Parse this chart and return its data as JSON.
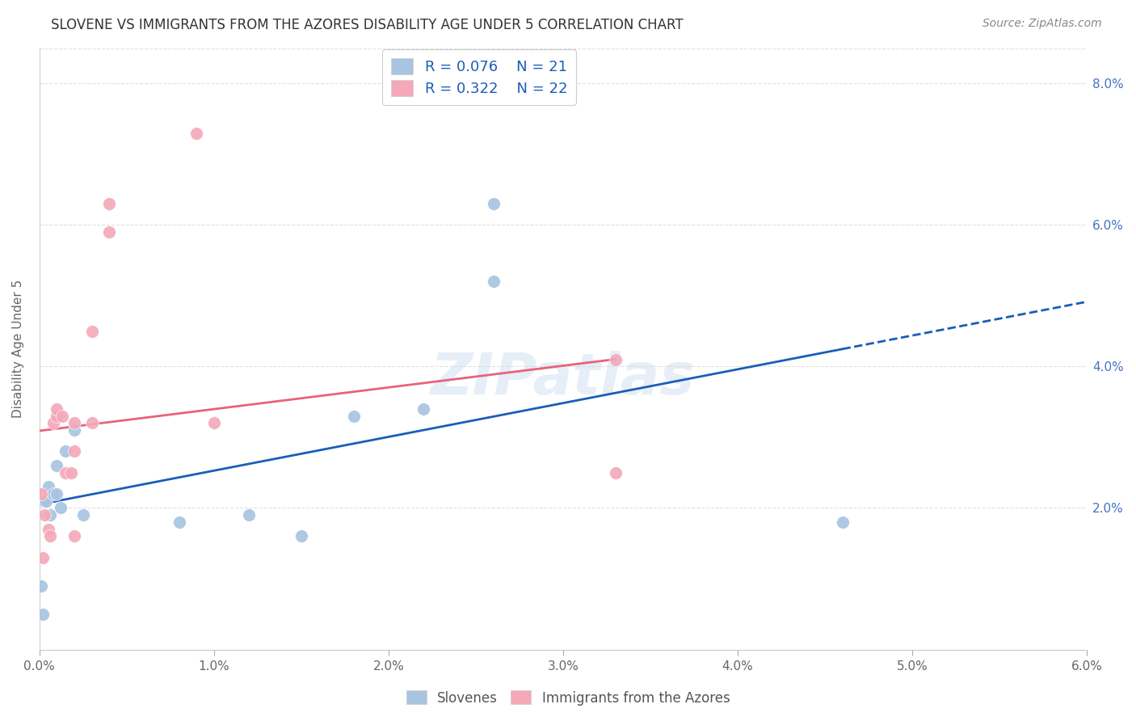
{
  "title": "SLOVENE VS IMMIGRANTS FROM THE AZORES DISABILITY AGE UNDER 5 CORRELATION CHART",
  "source": "Source: ZipAtlas.com",
  "ylabel": "Disability Age Under 5",
  "legend_label_1": "Slovenes",
  "legend_label_2": "Immigrants from the Azores",
  "r1": 0.076,
  "n1": 21,
  "r2": 0.322,
  "n2": 22,
  "color1": "#a8c4e0",
  "color2": "#f4a8b8",
  "line1_color": "#1a5eb8",
  "line2_color": "#e8637a",
  "xlim": [
    0.0,
    0.06
  ],
  "ylim": [
    0.0,
    0.085
  ],
  "xticks": [
    0.0,
    0.01,
    0.02,
    0.03,
    0.04,
    0.05,
    0.06
  ],
  "xticklabels": [
    "0.0%",
    "1.0%",
    "2.0%",
    "3.0%",
    "4.0%",
    "5.0%",
    "6.0%"
  ],
  "yticks": [
    0.0,
    0.02,
    0.04,
    0.06,
    0.08
  ],
  "yticklabels_right": [
    "",
    "2.0%",
    "4.0%",
    "6.0%",
    "8.0%"
  ],
  "slovenes_x": [
    0.0001,
    0.0002,
    0.0003,
    0.0004,
    0.0005,
    0.0006,
    0.0008,
    0.001,
    0.001,
    0.0012,
    0.0015,
    0.002,
    0.0025,
    0.008,
    0.012,
    0.015,
    0.018,
    0.022,
    0.026,
    0.026,
    0.046
  ],
  "slovenes_y": [
    0.009,
    0.005,
    0.021,
    0.021,
    0.023,
    0.019,
    0.022,
    0.022,
    0.026,
    0.02,
    0.028,
    0.031,
    0.019,
    0.018,
    0.019,
    0.016,
    0.033,
    0.034,
    0.063,
    0.052,
    0.018
  ],
  "azores_x": [
    0.0001,
    0.0002,
    0.0003,
    0.0005,
    0.0006,
    0.0008,
    0.001,
    0.001,
    0.0013,
    0.0015,
    0.0018,
    0.002,
    0.002,
    0.002,
    0.003,
    0.003,
    0.004,
    0.004,
    0.009,
    0.01,
    0.033,
    0.033
  ],
  "azores_y": [
    0.022,
    0.013,
    0.019,
    0.017,
    0.016,
    0.032,
    0.033,
    0.034,
    0.033,
    0.025,
    0.025,
    0.028,
    0.032,
    0.016,
    0.032,
    0.045,
    0.059,
    0.063,
    0.073,
    0.032,
    0.025,
    0.041
  ],
  "watermark": "ZIPatlas",
  "background_color": "#ffffff",
  "grid_color": "#e0e0e0",
  "line1_x_max_data": 0.046,
  "line2_x_max_data": 0.033
}
